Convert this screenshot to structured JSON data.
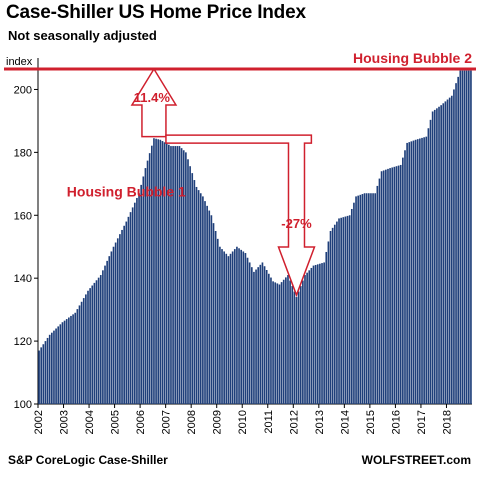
{
  "header": {
    "title": "Case-Shiller US Home Price Index",
    "subtitle": "Not seasonally adjusted"
  },
  "footer": {
    "source": "S&P CoreLogic Case-Shiller",
    "credit": "WOLFSTREET.com"
  },
  "chart_data": {
    "type": "bar",
    "ylabel": "index",
    "ylim": [
      100,
      210
    ],
    "yticks": [
      100,
      120,
      140,
      160,
      180,
      200
    ],
    "xticks": [
      "2002",
      "2003",
      "2004",
      "2005",
      "2006",
      "2007",
      "2008",
      "2009",
      "2010",
      "2011",
      "2012",
      "2013",
      "2014",
      "2015",
      "2016",
      "2017",
      "2018"
    ],
    "x_range": [
      "2002-01",
      "2018-12"
    ],
    "bar_color": "#1f3f7a",
    "annotation_color": "#d0202e",
    "reference_line": {
      "value": 206.5,
      "label": "Housing Bubble 2"
    },
    "annotations": [
      {
        "text": "Housing Bubble 1",
        "x": "2005-06",
        "y": 166
      },
      {
        "text": "11.4%",
        "x": "2006-06",
        "y": 196
      },
      {
        "text": "-27%",
        "x": "2012-02",
        "y": 156
      }
    ],
    "arrows": [
      {
        "from": {
          "x": "2006-07",
          "y": 185
        },
        "to": {
          "x": "2006-07",
          "y": 206.5
        },
        "direction": "up"
      },
      {
        "from": {
          "x": "2006-07",
          "y": 185.5
        },
        "to": {
          "x": "2012-02",
          "y": 134
        },
        "direction": "down",
        "bend_x": "2012-09"
      }
    ],
    "keypoints": [
      [
        "2002-01",
        117
      ],
      [
        "2002-06",
        122
      ],
      [
        "2002-12",
        126
      ],
      [
        "2003-06",
        129
      ],
      [
        "2003-12",
        136
      ],
      [
        "2004-06",
        141
      ],
      [
        "2004-12",
        150
      ],
      [
        "2005-06",
        158
      ],
      [
        "2005-12",
        167
      ],
      [
        "2006-03",
        175
      ],
      [
        "2006-07",
        184.5
      ],
      [
        "2006-10",
        184
      ],
      [
        "2007-03",
        182
      ],
      [
        "2007-07",
        182
      ],
      [
        "2007-10",
        180
      ],
      [
        "2008-03",
        169
      ],
      [
        "2008-06",
        166
      ],
      [
        "2008-10",
        160
      ],
      [
        "2009-02",
        150
      ],
      [
        "2009-06",
        147
      ],
      [
        "2009-10",
        150
      ],
      [
        "2010-02",
        148
      ],
      [
        "2010-06",
        142
      ],
      [
        "2010-10",
        145
      ],
      [
        "2011-03",
        139
      ],
      [
        "2011-06",
        138
      ],
      [
        "2011-10",
        141
      ],
      [
        "2012-02",
        134
      ],
      [
        "2012-06",
        141
      ],
      [
        "2012-10",
        144
      ],
      [
        "2013-03",
        145
      ],
      [
        "2013-06",
        155
      ],
      [
        "2013-10",
        159
      ],
      [
        "2014-03",
        160
      ],
      [
        "2014-06",
        166
      ],
      [
        "2014-10",
        167
      ],
      [
        "2015-03",
        167
      ],
      [
        "2015-06",
        174
      ],
      [
        "2015-10",
        175
      ],
      [
        "2016-03",
        176
      ],
      [
        "2016-06",
        183
      ],
      [
        "2016-10",
        184
      ],
      [
        "2017-03",
        185
      ],
      [
        "2017-06",
        193
      ],
      [
        "2017-10",
        195
      ],
      [
        "2018-03",
        198
      ],
      [
        "2018-07",
        206
      ],
      [
        "2018-12",
        206
      ]
    ]
  }
}
